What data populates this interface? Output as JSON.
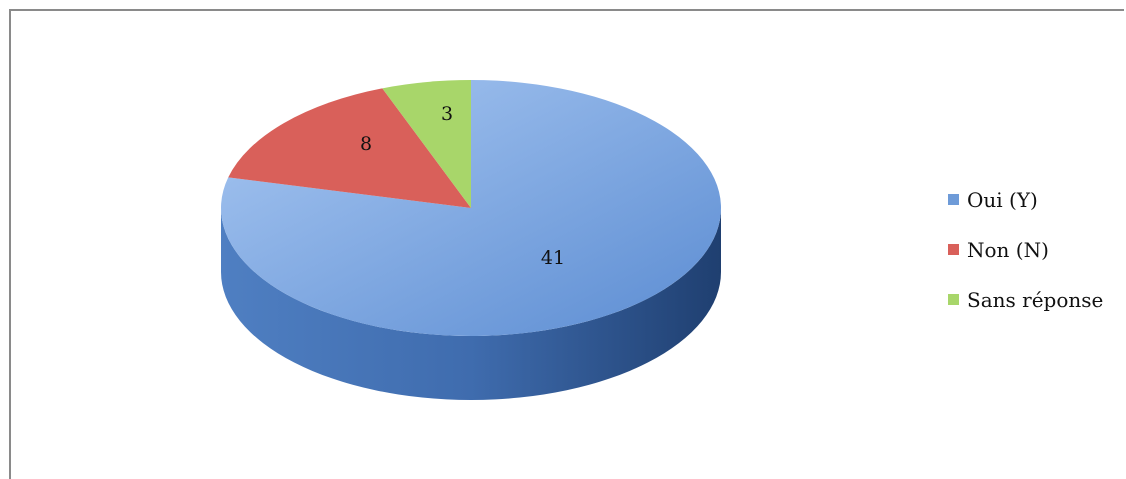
{
  "chart_data": {
    "type": "pie",
    "style": "3d",
    "categories": [
      "Oui (Y)",
      "Non (N)",
      "Sans réponse"
    ],
    "values": [
      41,
      8,
      3
    ],
    "data_labels": [
      "41",
      "8",
      "3"
    ],
    "colors": [
      "#6E9BD8",
      "#D9605A",
      "#A8D66A"
    ],
    "side_colors": [
      "#3D6AA8",
      "#A23E39",
      "#7BA544"
    ],
    "legend_position": "right"
  }
}
